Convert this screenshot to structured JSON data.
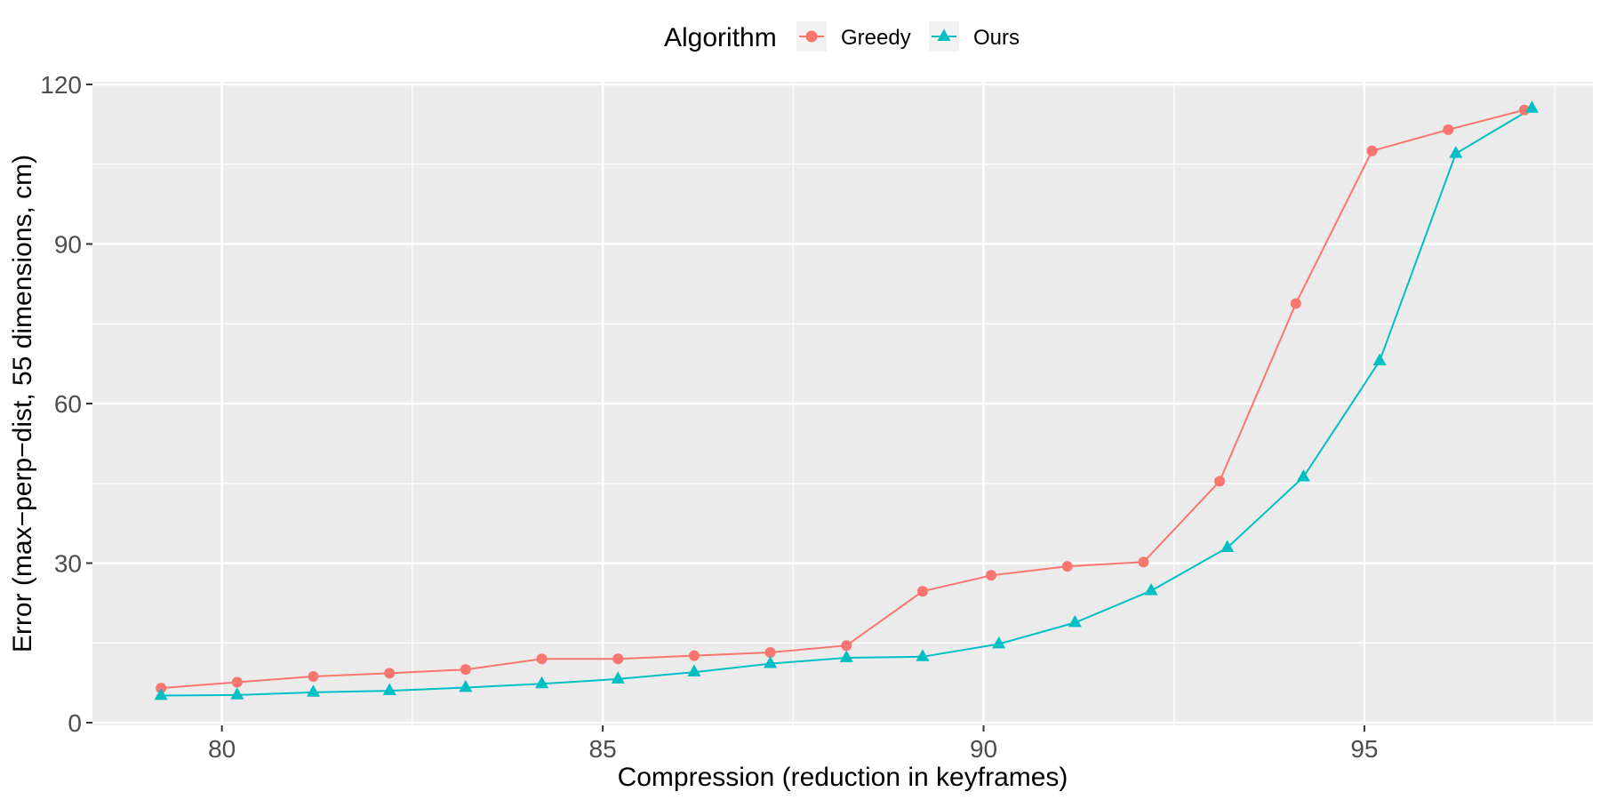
{
  "chart_data": {
    "type": "line",
    "title": "",
    "xlabel": "Compression (reduction in keyframes)",
    "ylabel": "Error (max−perp−dist, 55 dimensions, cm)",
    "xlim": [
      78.3,
      98.0
    ],
    "ylim": [
      -0.5,
      120.5
    ],
    "xticks": [
      80,
      85,
      90,
      95
    ],
    "yticks": [
      0,
      30,
      60,
      90,
      120
    ],
    "grid": true,
    "legend": {
      "title": "Algorithm",
      "position": "top"
    },
    "series": [
      {
        "name": "Greedy",
        "color": "#F8766D",
        "marker": "circle",
        "points": [
          [
            79.2,
            6.5
          ],
          [
            80.2,
            7.6
          ],
          [
            81.2,
            8.7
          ],
          [
            82.2,
            9.3
          ],
          [
            83.2,
            10.0
          ],
          [
            84.2,
            12.0
          ],
          [
            85.2,
            12.0
          ],
          [
            86.2,
            12.6
          ],
          [
            87.2,
            13.2
          ],
          [
            88.2,
            14.5
          ],
          [
            89.2,
            24.7
          ],
          [
            90.1,
            27.7
          ],
          [
            91.1,
            29.4
          ],
          [
            92.1,
            30.2
          ],
          [
            93.1,
            45.4
          ],
          [
            94.1,
            78.8
          ],
          [
            95.1,
            107.5
          ],
          [
            96.1,
            111.5
          ],
          [
            97.1,
            115.2
          ]
        ]
      },
      {
        "name": "Ours",
        "color": "#00BFC4",
        "marker": "triangle",
        "points": [
          [
            79.2,
            5.1
          ],
          [
            80.2,
            5.2
          ],
          [
            81.2,
            5.7
          ],
          [
            82.2,
            6.0
          ],
          [
            83.2,
            6.6
          ],
          [
            84.2,
            7.3
          ],
          [
            85.2,
            8.2
          ],
          [
            86.2,
            9.5
          ],
          [
            87.2,
            11.1
          ],
          [
            88.2,
            12.2
          ],
          [
            89.2,
            12.4
          ],
          [
            90.2,
            14.8
          ],
          [
            91.2,
            18.8
          ],
          [
            92.2,
            24.8
          ],
          [
            93.2,
            32.9
          ],
          [
            94.2,
            46.2
          ],
          [
            95.2,
            68.0
          ],
          [
            96.2,
            107.0
          ],
          [
            97.2,
            115.5
          ]
        ]
      }
    ]
  }
}
